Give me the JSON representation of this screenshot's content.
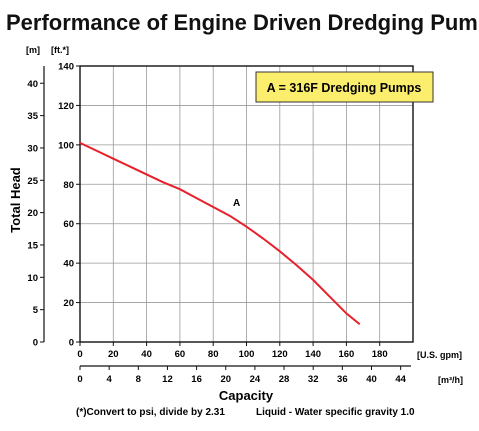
{
  "chart_data": {
    "type": "line",
    "title": "Performance of Engine Driven Dredging Pumps",
    "ylabel": "Total Head",
    "xlabel": "Capacity",
    "note_convert": "(*)Convert to psi, divide by 2.31",
    "note_liquid": "Liquid - Water specific gravity 1.0",
    "legend_box_text": "A = 316F Dredging Pumps",
    "legend_placement": "top-right",
    "grid": true,
    "x_primary": {
      "unit_label": "[U.S. gpm]",
      "lim": [
        0,
        200
      ],
      "ticks": [
        "0",
        "20",
        "40",
        "60",
        "80",
        "100",
        "120",
        "140",
        "160",
        "180"
      ]
    },
    "x_secondary": {
      "unit_label": "[m³/h]",
      "lim": [
        0,
        45.42
      ],
      "ticks": [
        "0",
        "4",
        "8",
        "12",
        "16",
        "20",
        "24",
        "28",
        "32",
        "36",
        "40",
        "44"
      ]
    },
    "y_primary": {
      "unit_label": "[ft.*]",
      "lim": [
        0,
        140
      ],
      "ticks": [
        "0",
        "20",
        "40",
        "60",
        "80",
        "100",
        "120",
        "140"
      ]
    },
    "y_secondary": {
      "unit_label": "[m]",
      "lim": [
        0,
        42.67
      ],
      "ticks": [
        "0",
        "5",
        "10",
        "15",
        "20",
        "25",
        "30",
        "35",
        "40"
      ]
    },
    "series": [
      {
        "name": "A",
        "color": "#e8202a",
        "x": [
          0,
          10,
          20,
          30,
          40,
          50,
          60,
          70,
          80,
          90,
          100,
          110,
          120,
          130,
          140,
          150,
          160,
          168
        ],
        "y": [
          101,
          97,
          93,
          89,
          85,
          81,
          77.5,
          73,
          68.5,
          64,
          58.5,
          52.5,
          46,
          39,
          31.5,
          23,
          14.5,
          9
        ]
      }
    ]
  }
}
